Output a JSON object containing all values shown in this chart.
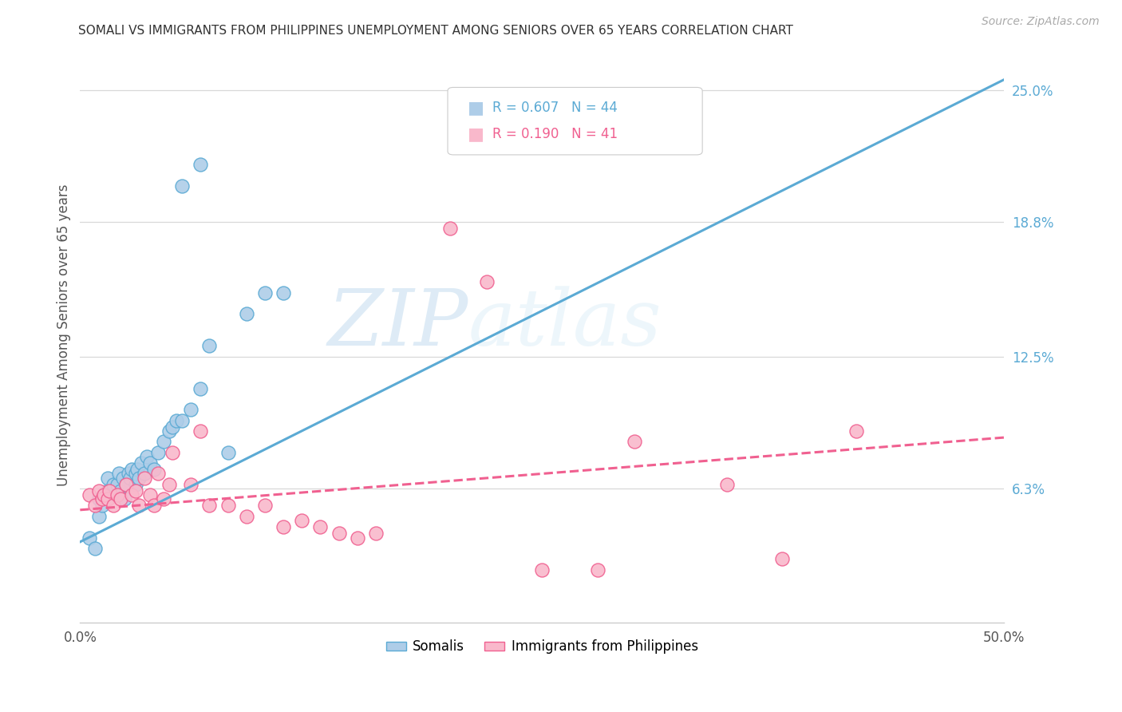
{
  "title": "SOMALI VS IMMIGRANTS FROM PHILIPPINES UNEMPLOYMENT AMONG SENIORS OVER 65 YEARS CORRELATION CHART",
  "source": "Source: ZipAtlas.com",
  "ylabel": "Unemployment Among Seniors over 65 years",
  "xlim": [
    0.0,
    0.5
  ],
  "ylim": [
    0.0,
    0.27
  ],
  "ytick_right_labels": [
    "25.0%",
    "18.8%",
    "12.5%",
    "6.3%"
  ],
  "ytick_right_values": [
    0.25,
    0.188,
    0.125,
    0.063
  ],
  "watermark_zip": "ZIP",
  "watermark_atlas": "atlas",
  "legend_r1_val": "0.607",
  "legend_n1_val": "44",
  "legend_r2_val": "0.190",
  "legend_n2_val": "41",
  "somali_color": "#aecde8",
  "somali_edge_color": "#5baad4",
  "philippines_color": "#f9b8cb",
  "philippines_edge_color": "#f06090",
  "line_somali_color": "#5baad4",
  "line_philippines_color": "#f06090",
  "background_color": "#ffffff",
  "grid_color": "#d8d8d8",
  "somali_x": [
    0.005,
    0.008,
    0.01,
    0.01,
    0.012,
    0.013,
    0.015,
    0.015,
    0.017,
    0.018,
    0.02,
    0.02,
    0.021,
    0.022,
    0.023,
    0.024,
    0.025,
    0.026,
    0.027,
    0.028,
    0.03,
    0.03,
    0.031,
    0.032,
    0.033,
    0.035,
    0.036,
    0.038,
    0.04,
    0.042,
    0.045,
    0.048,
    0.05,
    0.052,
    0.055,
    0.06,
    0.065,
    0.07,
    0.08,
    0.09,
    0.1,
    0.11,
    0.055,
    0.065
  ],
  "somali_y": [
    0.04,
    0.035,
    0.058,
    0.05,
    0.055,
    0.06,
    0.062,
    0.068,
    0.06,
    0.065,
    0.06,
    0.065,
    0.07,
    0.062,
    0.068,
    0.058,
    0.065,
    0.07,
    0.068,
    0.072,
    0.065,
    0.07,
    0.072,
    0.068,
    0.075,
    0.07,
    0.078,
    0.075,
    0.072,
    0.08,
    0.085,
    0.09,
    0.092,
    0.095,
    0.095,
    0.1,
    0.11,
    0.13,
    0.08,
    0.145,
    0.155,
    0.155,
    0.205,
    0.215
  ],
  "philippines_x": [
    0.005,
    0.008,
    0.01,
    0.012,
    0.013,
    0.015,
    0.016,
    0.018,
    0.02,
    0.022,
    0.025,
    0.028,
    0.03,
    0.032,
    0.035,
    0.038,
    0.04,
    0.042,
    0.045,
    0.048,
    0.05,
    0.06,
    0.065,
    0.07,
    0.08,
    0.09,
    0.1,
    0.11,
    0.12,
    0.13,
    0.14,
    0.15,
    0.16,
    0.2,
    0.22,
    0.25,
    0.28,
    0.3,
    0.35,
    0.38,
    0.42
  ],
  "philippines_y": [
    0.06,
    0.055,
    0.062,
    0.058,
    0.06,
    0.058,
    0.062,
    0.055,
    0.06,
    0.058,
    0.065,
    0.06,
    0.062,
    0.055,
    0.068,
    0.06,
    0.055,
    0.07,
    0.058,
    0.065,
    0.08,
    0.065,
    0.09,
    0.055,
    0.055,
    0.05,
    0.055,
    0.045,
    0.048,
    0.045,
    0.042,
    0.04,
    0.042,
    0.185,
    0.16,
    0.025,
    0.025,
    0.085,
    0.065,
    0.03,
    0.09
  ]
}
